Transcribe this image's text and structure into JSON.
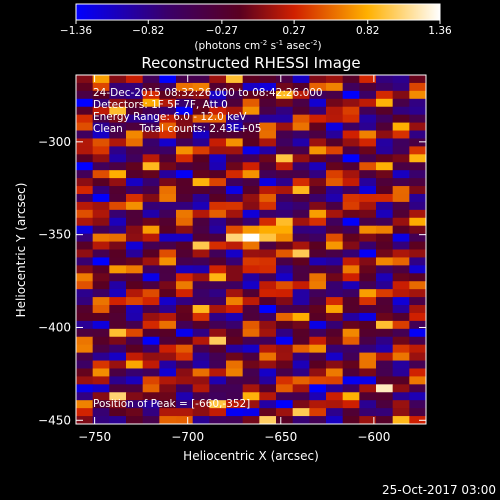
{
  "chart_data": {
    "type": "heatmap",
    "title": "Reconstructed RHESSI Image",
    "colorbar": {
      "ticks": [
        "-1.36",
        "-0.82",
        "-0.27",
        "0.27",
        "0.82",
        "1.36"
      ],
      "range": [
        -1.36,
        1.36
      ],
      "units_prefix": "(photons cm",
      "units_exp1": "-2",
      "units_mid": " s",
      "units_exp2": "-1",
      "units_mid2": " asec",
      "units_exp3": "-2",
      "units_suffix": ")"
    },
    "xlabel": "Heliocentric X (arcsec)",
    "ylabel": "Heliocentric Y (arcsec)",
    "xlim": [
      -760,
      -572
    ],
    "ylim": [
      -452,
      -264
    ],
    "xticks": [
      -750,
      -700,
      -650,
      -600
    ],
    "yticks": [
      -300,
      -350,
      -400,
      -450
    ],
    "xtick_labels": [
      "−750",
      "−700",
      "−650",
      "−600"
    ],
    "ytick_labels": [
      "−300",
      "−350",
      "−400",
      "−450"
    ],
    "peak": {
      "x": -660,
      "y": -352
    },
    "annotations": {
      "line1": "24-Dec-2015 08:32:26.000 to 08:42:26.000",
      "line2": "Detectors: 1F 5F 7F, Att 0",
      "line3": "Energy Range: 6.0 - 12.0 keV",
      "line4": "Clean     Total counts: 2.43E+05",
      "peak_label": "Position of Peak = [-660,-352]"
    },
    "grid": false
  },
  "footer": {
    "timestamp": "25-Oct-2017 03:00"
  }
}
